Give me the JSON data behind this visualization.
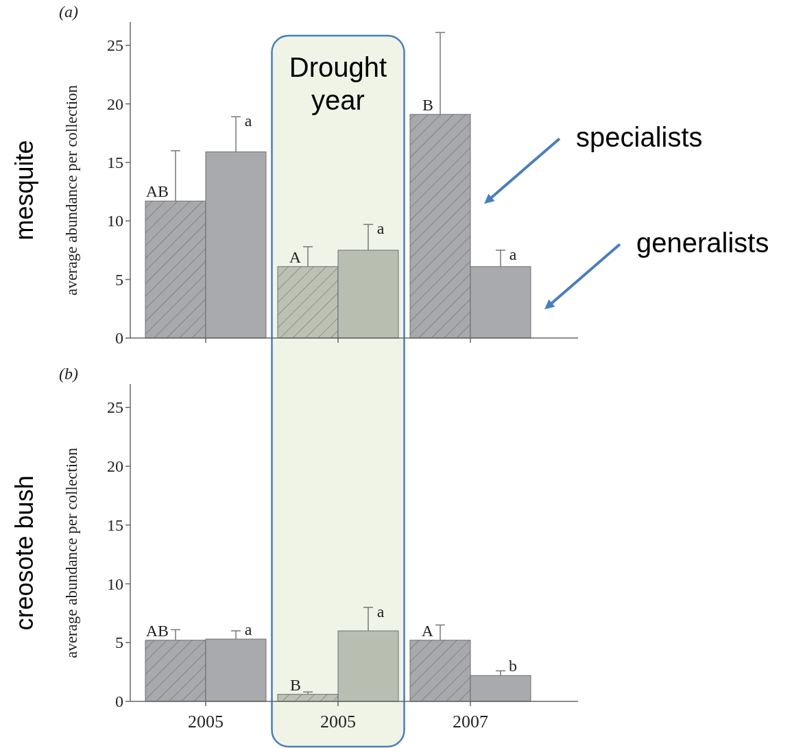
{
  "chart_data": [
    {
      "type": "bar",
      "title": "mesquite",
      "ylabel": "average abundance per collection",
      "annotations": [
        "(a)",
        "Drought year"
      ],
      "categories": [
        null,
        null,
        null
      ],
      "ylim": [
        0,
        27
      ],
      "yticks": [
        0,
        5,
        10,
        15,
        20,
        25
      ],
      "tick_labels": "y",
      "series": [
        {
          "name": "specialists",
          "colors": [
            "#a8a9ad",
            "#bcc1b4",
            "#a8a9ad"
          ],
          "values": [
            11.7,
            6.1,
            19.1
          ],
          "errors": [
            [
              11.7,
              16
            ],
            [
              6.1,
              7.8
            ],
            [
              19.1,
              26.1
            ]
          ],
          "value_labels": [
            "AB",
            "A",
            "B"
          ]
        },
        {
          "name": "generalists",
          "colors": [
            "#a9aaae",
            "#b8bfb1",
            "#a9aaae"
          ],
          "values": [
            15.9,
            7.5,
            6.1
          ],
          "errors": [
            [
              15.9,
              18.9
            ],
            [
              7.5,
              9.7
            ],
            [
              6.1,
              7.5
            ]
          ],
          "value_labels": [
            "a",
            "a",
            "a"
          ]
        }
      ]
    },
    {
      "type": "bar",
      "title": "creosote bush",
      "ylabel": "average abundance per collection",
      "annotations": [
        "(b)"
      ],
      "categories": [
        "2005",
        "2005",
        "2007"
      ],
      "ylim": [
        0,
        27
      ],
      "yticks": [
        0,
        5,
        10,
        15,
        20,
        25
      ],
      "series": [
        {
          "colors": [
            "#a8a9ad",
            "#bcc1b4",
            "#a8a9ad"
          ],
          "values": [
            5.2,
            0.6,
            5.2
          ],
          "errors": [
            [
              5.2,
              6.1
            ],
            [
              0.6,
              0.8
            ],
            [
              5.2,
              6.5
            ]
          ],
          "value_labels": [
            "AB",
            "B",
            "A"
          ]
        },
        {
          "colors": [
            "#a9aaae",
            "#b8bfb1",
            "#a9aaae"
          ],
          "values": [
            5.3,
            6.0,
            2.2
          ],
          "errors": [
            [
              5.3,
              6.0
            ],
            [
              6.0,
              8.0
            ],
            [
              2.2,
              2.6
            ]
          ],
          "value_labels": [
            "a",
            "a",
            "b"
          ]
        }
      ]
    }
  ]
}
